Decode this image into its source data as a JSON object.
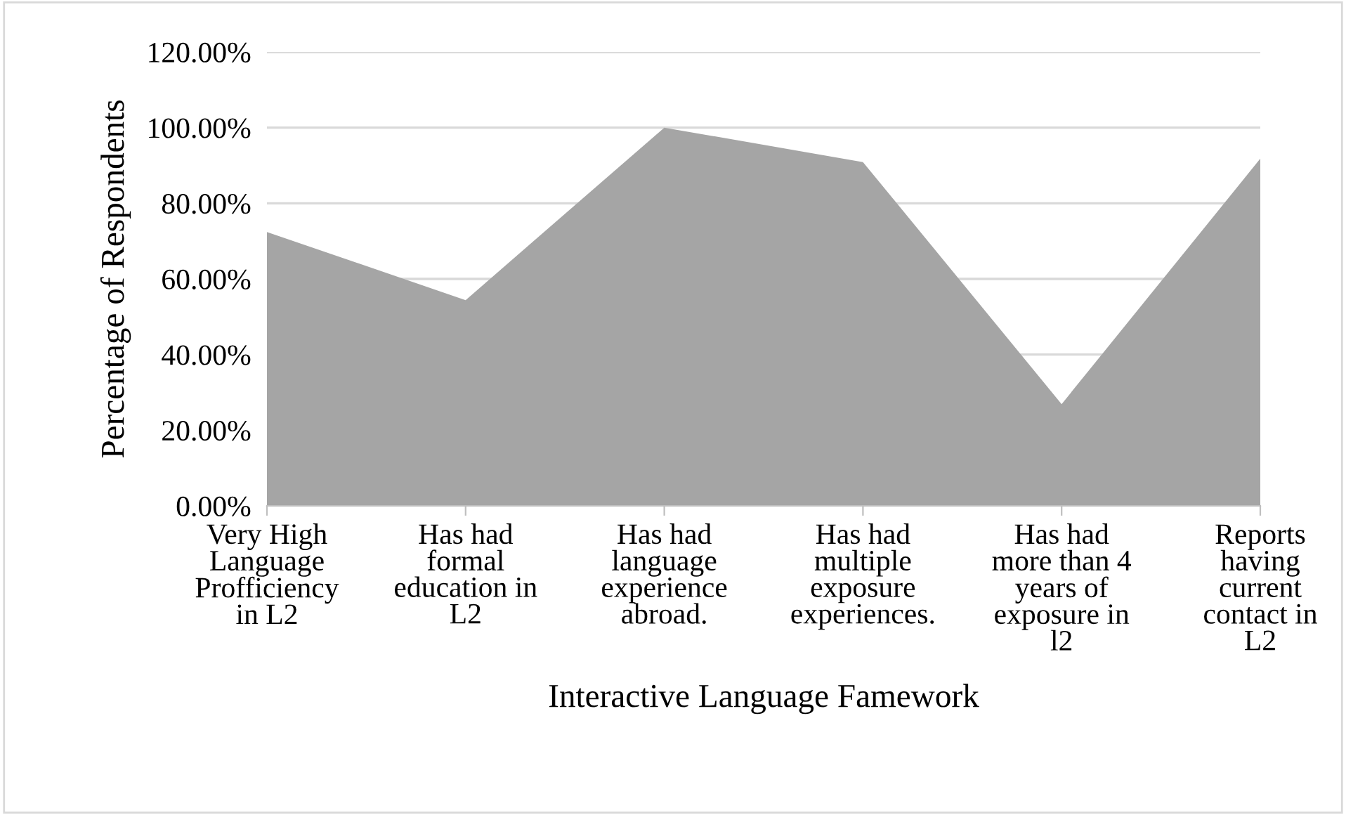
{
  "chart_data": {
    "type": "area",
    "xlabel": "Interactive Language Famework",
    "ylabel": "Percentage of Respondents",
    "categories": [
      "Very High\nLanguage\nProfficiency\nin L2",
      "Has had\nformal\neducation in\nL2",
      "Has had\nlanguage\nexperience\nabroad.",
      "Has had\nmultiple\nexposure\nexperiences.",
      "Has had\nmore than 4\nyears of\nexposure in\nl2",
      "Reports\nhaving\ncurrent\ncontact in\nL2"
    ],
    "series": [
      {
        "color": "#a5a5a5",
        "values": [
          72.4,
          54.4,
          100,
          90.9,
          26.9,
          91.8
        ]
      }
    ],
    "ylim": [
      0,
      120
    ],
    "yticks": [
      {
        "value": 0,
        "label": "0.00%"
      },
      {
        "value": 20,
        "label": "20.00%"
      },
      {
        "value": 40,
        "label": "40.00%"
      },
      {
        "value": 60,
        "label": "60.00%"
      },
      {
        "value": 80,
        "label": "80.00%"
      },
      {
        "value": 100,
        "label": "100.00%"
      },
      {
        "value": 120,
        "label": "120.00%"
      }
    ],
    "grid": "y",
    "legend": false
  }
}
